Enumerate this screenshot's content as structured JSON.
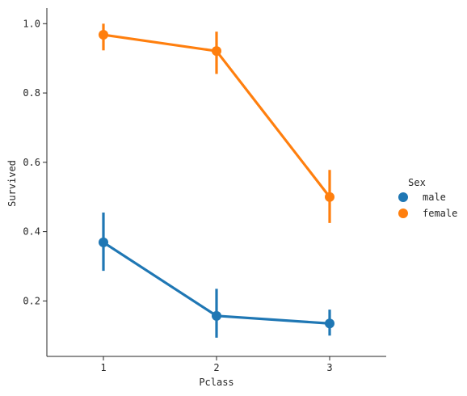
{
  "chart_data": {
    "type": "line",
    "x": [
      "1",
      "2",
      "3"
    ],
    "xlabel": "Pclass",
    "ylabel": "Survived",
    "ylim": [
      0.04,
      1.045
    ],
    "yticks": [
      0.2,
      0.4,
      0.6,
      0.8,
      1.0
    ],
    "ytick_labels": [
      "0.2",
      "0.4",
      "0.6",
      "0.8",
      "1.0"
    ],
    "grid": false,
    "legend": {
      "title": "Sex",
      "position": "right"
    },
    "series": [
      {
        "name": "male",
        "color": "#1f77b4",
        "values": [
          0.369,
          0.157,
          0.135
        ],
        "ci_low": [
          0.287,
          0.094,
          0.1
        ],
        "ci_high": [
          0.455,
          0.235,
          0.175
        ]
      },
      {
        "name": "female",
        "color": "#ff7f0e",
        "values": [
          0.968,
          0.921,
          0.5
        ],
        "ci_low": [
          0.923,
          0.855,
          0.425
        ],
        "ci_high": [
          1.0,
          0.977,
          0.578
        ]
      }
    ]
  }
}
